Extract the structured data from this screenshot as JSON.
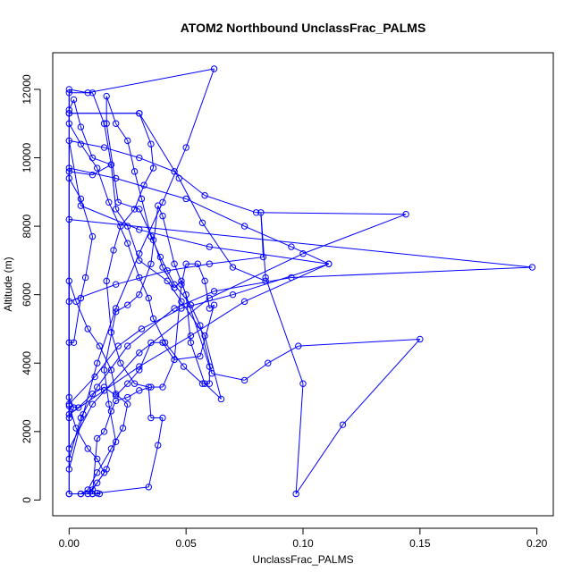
{
  "chart_data": {
    "type": "scatter",
    "title": "ATOM2 Northbound UnclassFrac_PALMS",
    "xlabel": "UnclassFrac_PALMS",
    "ylabel": "Altitude (m)",
    "xlim": [
      -0.007,
      0.207
    ],
    "ylim": [
      -460,
      13070
    ],
    "xticks": [
      0.0,
      0.05,
      0.1,
      0.15,
      0.2
    ],
    "xtick_labels": [
      "0.00",
      "0.05",
      "0.10",
      "0.15",
      "0.20"
    ],
    "yticks": [
      0,
      2000,
      4000,
      6000,
      8000,
      10000,
      12000
    ],
    "ytick_labels": [
      "0",
      "2000",
      "4000",
      "6000",
      "8000",
      "10000",
      "12000"
    ],
    "grid": false,
    "connected": true,
    "color": "#0000ff",
    "series": [
      {
        "points": [
          [
            0.0,
            180
          ],
          [
            0.005,
            180
          ],
          [
            0.01,
            300
          ],
          [
            0.015,
            800
          ],
          [
            0.012,
            1200
          ],
          [
            0.008,
            1500
          ],
          [
            0.003,
            2100
          ],
          [
            0.0,
            2750
          ],
          [
            0.004,
            2700
          ],
          [
            0.01,
            3100
          ],
          [
            0.015,
            3300
          ],
          [
            0.02,
            3050
          ],
          [
            0.025,
            3400
          ],
          [
            0.03,
            3800
          ],
          [
            0.035,
            4600
          ],
          [
            0.04,
            4600
          ],
          [
            0.045,
            4100
          ],
          [
            0.048,
            6300
          ],
          [
            0.05,
            6900
          ],
          [
            0.055,
            6900
          ],
          [
            0.058,
            6400
          ],
          [
            0.06,
            5600
          ],
          [
            0.062,
            5700
          ],
          [
            0.056,
            4200
          ],
          [
            0.045,
            4100
          ],
          [
            0.04,
            3300
          ],
          [
            0.035,
            3300
          ],
          [
            0.03,
            3200
          ],
          [
            0.025,
            3000
          ],
          [
            0.02,
            2900
          ],
          [
            0.018,
            2600
          ],
          [
            0.015,
            2000
          ],
          [
            0.012,
            1800
          ],
          [
            0.01,
            180
          ],
          [
            0.008,
            180
          ],
          [
            0.012,
            500
          ],
          [
            0.016,
            900
          ],
          [
            0.02,
            1700
          ],
          [
            0.017,
            2800
          ],
          [
            0.015,
            3800
          ],
          [
            0.02,
            5500
          ],
          [
            0.025,
            5700
          ],
          [
            0.03,
            6000
          ],
          [
            0.035,
            6900
          ],
          [
            0.038,
            8600
          ],
          [
            0.04,
            8300
          ],
          [
            0.045,
            6900
          ],
          [
            0.05,
            6000
          ],
          [
            0.052,
            4600
          ],
          [
            0.058,
            3400
          ],
          [
            0.065,
            2950
          ],
          [
            0.058,
            4800
          ],
          [
            0.048,
            5800
          ],
          [
            0.042,
            6400
          ],
          [
            0.03,
            7000
          ],
          [
            0.025,
            8000
          ],
          [
            0.02,
            8500
          ],
          [
            0.018,
            9800
          ],
          [
            0.015,
            11000
          ],
          [
            0.01,
            11900
          ],
          [
            0.0,
            11900
          ],
          [
            0.0,
            11400
          ],
          [
            0.002,
            11700
          ],
          [
            0.005,
            10900
          ],
          [
            0.01,
            10000
          ],
          [
            0.018,
            9800
          ],
          [
            0.01,
            9500
          ],
          [
            0.0,
            9600
          ],
          [
            0.0,
            9400
          ],
          [
            0.005,
            8800
          ],
          [
            0.01,
            7700
          ],
          [
            0.007,
            6500
          ],
          [
            0.005,
            5900
          ],
          [
            0.002,
            4600
          ],
          [
            0.0,
            4600
          ],
          [
            0.0,
            3000
          ],
          [
            0.002,
            2700
          ],
          [
            0.0,
            2400
          ],
          [
            0.0,
            180
          ],
          [
            0.0,
            6400
          ],
          [
            0.003,
            5800
          ],
          [
            0.008,
            5000
          ],
          [
            0.013,
            4500
          ],
          [
            0.018,
            3800
          ],
          [
            0.02,
            3100
          ],
          [
            0.025,
            2800
          ],
          [
            0.023,
            2100
          ],
          [
            0.018,
            1500
          ],
          [
            0.012,
            800
          ],
          [
            0.008,
            300
          ],
          [
            0.005,
            180
          ],
          [
            0.01,
            180
          ],
          [
            0.013,
            180
          ],
          [
            0.012,
            200
          ],
          [
            0.034,
            380
          ],
          [
            0.038,
            1600
          ],
          [
            0.04,
            2400
          ],
          [
            0.035,
            2400
          ],
          [
            0.034,
            3300
          ],
          [
            0.028,
            3400
          ],
          [
            0.022,
            4000
          ],
          [
            0.018,
            4900
          ],
          [
            0.016,
            6400
          ],
          [
            0.019,
            7300
          ],
          [
            0.022,
            8000
          ],
          [
            0.028,
            8500
          ],
          [
            0.032,
            9200
          ],
          [
            0.036,
            9700
          ],
          [
            0.035,
            10400
          ],
          [
            0.03,
            11300
          ],
          [
            0.0,
            11300
          ],
          [
            0.0,
            11000
          ],
          [
            0.005,
            10400
          ],
          [
            0.012,
            9700
          ],
          [
            0.017,
            8700
          ],
          [
            0.025,
            7500
          ],
          [
            0.03,
            6500
          ],
          [
            0.034,
            5900
          ],
          [
            0.036,
            5300
          ],
          [
            0.041,
            4600
          ],
          [
            0.049,
            3900
          ],
          [
            0.057,
            3400
          ],
          [
            0.06,
            3400
          ],
          [
            0.06,
            3900
          ],
          [
            0.048,
            6400
          ],
          [
            0.045,
            6200
          ],
          [
            0.04,
            6800
          ],
          [
            0.036,
            7600
          ],
          [
            0.03,
            8500
          ],
          [
            0.021,
            8700
          ],
          [
            0.016,
            11000
          ],
          [
            0.016,
            11800
          ],
          [
            0.02,
            11000
          ],
          [
            0.025,
            10500
          ],
          [
            0.028,
            9600
          ],
          [
            0.031,
            8800
          ],
          [
            0.035,
            7700
          ],
          [
            0.039,
            7100
          ],
          [
            0.045,
            6300
          ],
          [
            0.052,
            5700
          ],
          [
            0.056,
            5100
          ],
          [
            0.061,
            3700
          ],
          [
            0.075,
            3500
          ],
          [
            0.085,
            4000
          ],
          [
            0.098,
            4500
          ],
          [
            0.15,
            4700
          ],
          [
            0.117,
            2200
          ],
          [
            0.097,
            180
          ],
          [
            0.1,
            3400
          ],
          [
            0.084,
            6500
          ],
          [
            0.082,
            8400
          ],
          [
            0.083,
            7100
          ],
          [
            0.06,
            6900
          ],
          [
            0.042,
            6700
          ],
          [
            0.02,
            6300
          ],
          [
            0.0,
            5800
          ],
          [
            0.0,
            2800
          ],
          [
            0.011,
            3600
          ],
          [
            0.021,
            4500
          ],
          [
            0.031,
            5000
          ],
          [
            0.048,
            5600
          ],
          [
            0.07,
            6000
          ],
          [
            0.111,
            6900
          ],
          [
            0.075,
            5800
          ],
          [
            0.052,
            4800
          ],
          [
            0.03,
            3900
          ],
          [
            0.015,
            3200
          ],
          [
            0.0,
            2500
          ],
          [
            0.0,
            8200
          ],
          [
            0.198,
            6800
          ],
          [
            0.095,
            6500
          ],
          [
            0.062,
            6100
          ],
          [
            0.045,
            5600
          ],
          [
            0.025,
            4500
          ],
          [
            0.012,
            3300
          ],
          [
            0.005,
            2400
          ],
          [
            0.0,
            1200
          ],
          [
            0.0,
            9700
          ],
          [
            0.02,
            9400
          ],
          [
            0.05,
            8800
          ],
          [
            0.075,
            8000
          ],
          [
            0.095,
            7400
          ],
          [
            0.111,
            6900
          ],
          [
            0.06,
            7400
          ],
          [
            0.03,
            7900
          ],
          [
            0.005,
            8600
          ],
          [
            0.0,
            10500
          ],
          [
            0.015,
            10300
          ],
          [
            0.03,
            10000
          ],
          [
            0.045,
            9600
          ],
          [
            0.058,
            8900
          ],
          [
            0.08,
            8400
          ],
          [
            0.144,
            8350
          ],
          [
            0.1,
            7200
          ],
          [
            0.06,
            5900
          ],
          [
            0.03,
            4300
          ],
          [
            0.01,
            2800
          ],
          [
            0.0,
            1500
          ],
          [
            0.0,
            12000
          ],
          [
            0.008,
            11900
          ],
          [
            0.062,
            12600
          ],
          [
            0.05,
            10300
          ],
          [
            0.04,
            8700
          ],
          [
            0.03,
            7200
          ],
          [
            0.02,
            5600
          ],
          [
            0.012,
            4000
          ],
          [
            0.006,
            2500
          ],
          [
            0.0,
            900
          ],
          [
            0.0,
            11300
          ],
          [
            0.03,
            11300
          ],
          [
            0.047,
            9400
          ],
          [
            0.057,
            8100
          ],
          [
            0.07,
            6800
          ],
          [
            0.084,
            6400
          ]
        ]
      }
    ]
  }
}
